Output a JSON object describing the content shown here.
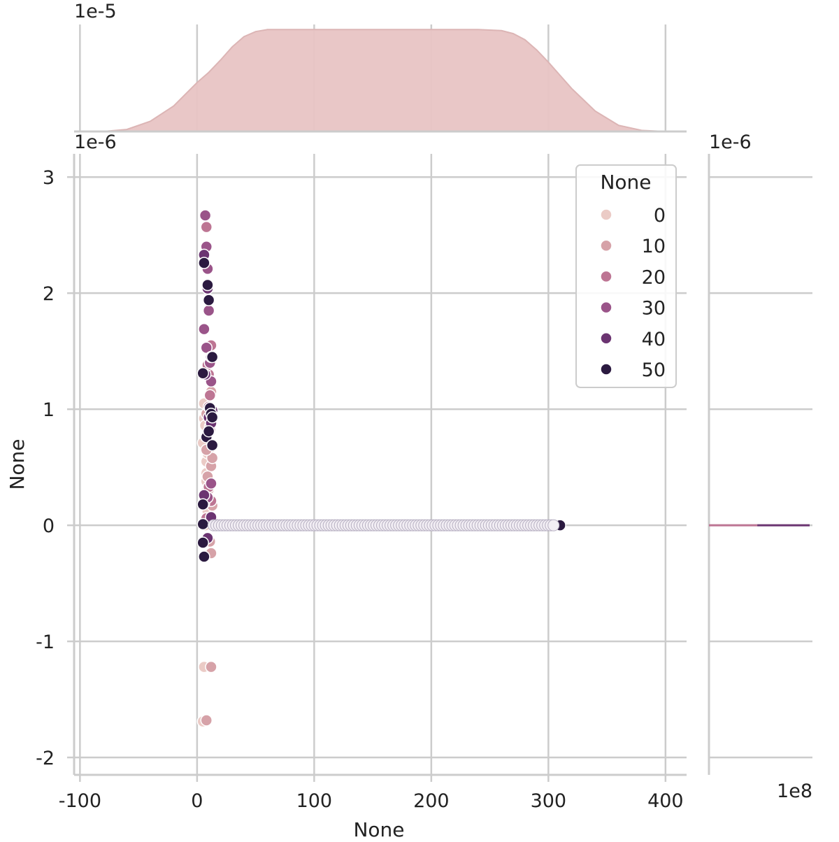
{
  "chart_data": {
    "type": "scatter",
    "title": "",
    "xlabel": "None",
    "ylabel": "None",
    "xlim": [
      -105,
      418
    ],
    "ylim": [
      -2.15,
      3.2
    ],
    "y_multiplier_label": "1e-6",
    "x_ticks": [
      -100,
      0,
      100,
      200,
      300,
      400
    ],
    "x_tick_labels": [
      "-100",
      "0",
      "100",
      "200",
      "300",
      "400"
    ],
    "y_ticks": [
      -2,
      -1,
      0,
      1,
      2,
      3
    ],
    "y_tick_labels": [
      "-2",
      "-1",
      "0",
      "1",
      "2",
      "3"
    ],
    "grid": true,
    "legend": {
      "title": "None",
      "placement": "upper-right",
      "entries": [
        {
          "label": "0",
          "color": "#ebcbc6"
        },
        {
          "label": "10",
          "color": "#d6a2a8"
        },
        {
          "label": "20",
          "color": "#bd7593"
        },
        {
          "label": "30",
          "color": "#9a5489"
        },
        {
          "label": "40",
          "color": "#6b3471"
        },
        {
          "label": "50",
          "color": "#2b1a40"
        }
      ]
    },
    "series": [
      {
        "name": "0",
        "color": "#ebcbc6",
        "x": [
          5,
          6,
          7,
          8,
          9,
          10,
          6,
          7,
          8,
          5,
          7,
          9,
          6,
          8,
          10
        ],
        "y": [
          -1.69,
          -1.22,
          0.0,
          0.55,
          0.62,
          0.34,
          0.92,
          0.86,
          0.45,
          0.71,
          0.28,
          0.12,
          1.05,
          0.38,
          0.65
        ]
      },
      {
        "name": "10",
        "color": "#d6a2a8",
        "x": [
          12,
          8,
          12,
          11,
          12,
          13,
          8,
          9,
          10,
          12,
          11,
          8,
          9,
          13
        ],
        "y": [
          -1.22,
          -1.68,
          -0.24,
          -0.14,
          0.51,
          0.58,
          0.65,
          0.42,
          0.31,
          1.15,
          0.85,
          0.96,
          1.33,
          0.17
        ]
      },
      {
        "name": "20",
        "color": "#bd7593",
        "x": [
          8,
          9,
          12,
          10,
          11,
          9,
          13,
          10,
          8,
          12,
          11,
          10
        ],
        "y": [
          2.57,
          2.21,
          1.55,
          1.3,
          1.12,
          1.38,
          0.69,
          0.33,
          0.06,
          0.21,
          0.82,
          1.02
        ]
      },
      {
        "name": "30",
        "color": "#9a5489",
        "x": [
          7,
          8,
          9,
          6,
          10,
          11,
          12,
          12,
          6,
          9,
          13,
          8
        ],
        "y": [
          2.67,
          2.4,
          2.21,
          1.69,
          1.85,
          1.4,
          1.24,
          0.36,
          0.19,
          0.24,
          0.04,
          1.53
        ]
      },
      {
        "name": "40",
        "color": "#6b3471",
        "x": [
          6,
          9,
          12,
          7,
          10,
          12,
          13,
          6,
          12,
          9
        ],
        "y": [
          2.33,
          2.04,
          1.45,
          1.3,
          0.93,
          0.88,
          0.99,
          0.26,
          0.07,
          -0.11
        ]
      },
      {
        "name": "50",
        "color": "#2b1a40",
        "x": [
          6,
          9,
          10,
          13,
          5,
          11,
          12,
          13,
          8,
          10,
          13,
          5,
          5,
          5,
          6,
          310
        ],
        "y": [
          2.26,
          2.07,
          1.94,
          1.45,
          1.31,
          1.01,
          0.96,
          0.93,
          0.76,
          0.81,
          0.69,
          0.18,
          0.01,
          -0.15,
          -0.27,
          0.0
        ]
      },
      {
        "name": "",
        "color": "#f2eef4",
        "stroke": "#b7b0c2",
        "x_range": [
          14,
          306
        ],
        "x_step": 2.4,
        "y_const": 0.0
      }
    ],
    "marginal_top": {
      "multiplier_label": "1e-5",
      "ymax": 1.05,
      "fill": "#e8c4c4",
      "x": [
        -100,
        -80,
        -60,
        -40,
        -20,
        0,
        10,
        20,
        30,
        40,
        50,
        60,
        80,
        100,
        150,
        200,
        240,
        260,
        270,
        280,
        290,
        300,
        310,
        320,
        340,
        360,
        380,
        400
      ],
      "y": [
        0.0,
        0.0,
        0.02,
        0.1,
        0.25,
        0.48,
        0.58,
        0.7,
        0.83,
        0.93,
        0.98,
        1.0,
        1.0,
        1.0,
        1.0,
        1.0,
        1.0,
        0.99,
        0.96,
        0.9,
        0.8,
        0.68,
        0.55,
        0.42,
        0.2,
        0.06,
        0.01,
        0.0
      ]
    },
    "marginal_right": {
      "multiplier_label": "1e-6",
      "x_multiplier_label": "1e8",
      "lines": [
        {
          "color": "#bd7593",
          "y": 0.0,
          "x_from": 0.0,
          "x_to": 0.48
        },
        {
          "color": "#6b3471",
          "y": 0.0,
          "x_from": 0.48,
          "x_to": 1.0
        }
      ]
    }
  }
}
